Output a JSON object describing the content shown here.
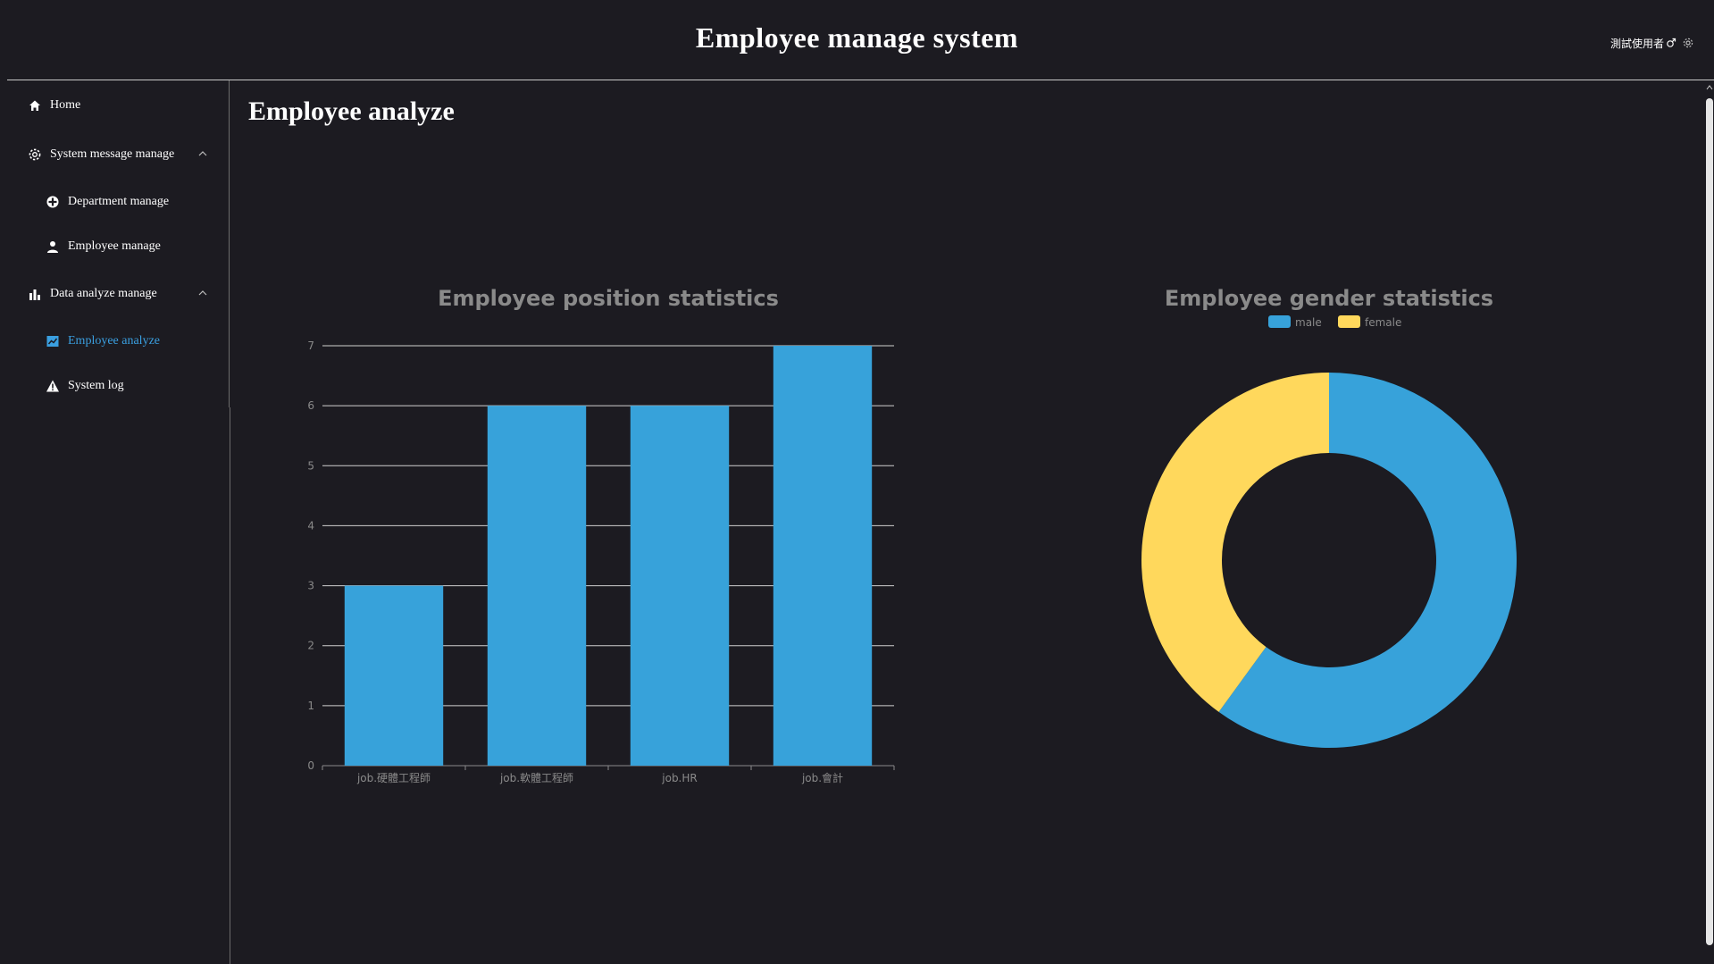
{
  "app": {
    "title": "Employee manage system",
    "user_name": "測試使用者"
  },
  "sidebar": {
    "items": [
      {
        "label": "Home",
        "icon": "home-icon"
      },
      {
        "label": "System message manage",
        "icon": "gear-icon",
        "expanded": true
      },
      {
        "label": "Department manage",
        "icon": "department-icon"
      },
      {
        "label": "Employee manage",
        "icon": "person-icon"
      },
      {
        "label": "Data analyze manage",
        "icon": "bar-chart-icon",
        "expanded": true
      },
      {
        "label": "Employee analyze",
        "icon": "trend-chart-icon",
        "active": true
      },
      {
        "label": "System log",
        "icon": "warning-icon"
      }
    ]
  },
  "content": {
    "title": "Employee analyze"
  },
  "colors": {
    "background": "#1c1b21",
    "accent": "#3a9fe0",
    "bar": "#37a2da",
    "male": "#37a2da",
    "female": "#ffd85c",
    "chart_title": "#8a8a8a"
  },
  "chart_data": [
    {
      "type": "bar",
      "title": "Employee position statistics",
      "categories": [
        "job.硬體工程師",
        "job.軟體工程師",
        "job.HR",
        "job.會計"
      ],
      "values": [
        3,
        6,
        6,
        7
      ],
      "ylim": [
        0,
        7
      ],
      "yticks": [
        "0",
        "1",
        "2",
        "3",
        "4",
        "5",
        "6",
        "7"
      ],
      "grid": true
    },
    {
      "type": "pie",
      "title": "Employee gender statistics",
      "donut": true,
      "legend_position": "top-center",
      "labels": [
        "male",
        "female"
      ],
      "values": [
        60,
        40
      ]
    }
  ]
}
